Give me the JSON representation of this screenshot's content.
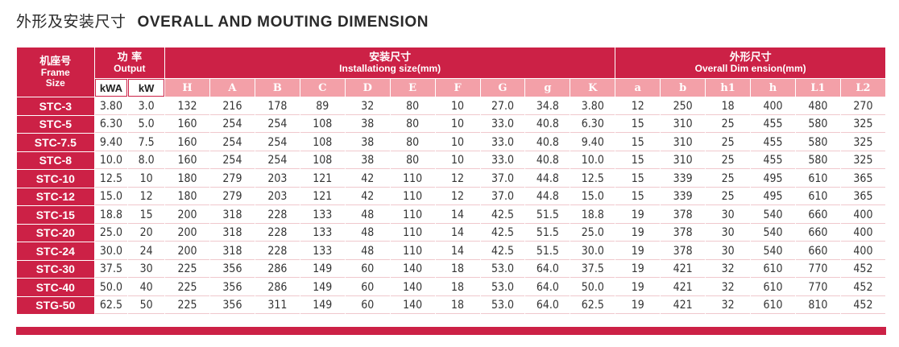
{
  "title": {
    "cn": "外形及安装尺寸",
    "en": "OVERALL AND MOUTING DIMENSION"
  },
  "header": {
    "frame": {
      "cn": "机座号",
      "en1": "Frame",
      "en2": "Size"
    },
    "output": {
      "cn": "功 率",
      "en": "Output",
      "units": [
        "kWA",
        "kW"
      ]
    },
    "install": {
      "cn": "安装尺寸",
      "en": "Installationg size(mm)",
      "letters": [
        "H",
        "A",
        "B",
        "C",
        "D",
        "E",
        "F",
        "G",
        "g",
        "K"
      ]
    },
    "overall": {
      "cn": "外形尺寸",
      "en": "Overall Dim ension(mm)",
      "letters": [
        "a",
        "b",
        "h1",
        "h",
        "L1",
        "L2"
      ]
    }
  },
  "rows": [
    [
      "STC-3",
      "3.80",
      "3.0",
      "132",
      "216",
      "178",
      "89",
      "32",
      "80",
      "10",
      "27.0",
      "34.8",
      "3.80",
      "12",
      "250",
      "18",
      "400",
      "480",
      "270"
    ],
    [
      "STC-5",
      "6.30",
      "5.0",
      "160",
      "254",
      "254",
      "108",
      "38",
      "80",
      "10",
      "33.0",
      "40.8",
      "6.30",
      "15",
      "310",
      "25",
      "455",
      "580",
      "325"
    ],
    [
      "STC-7.5",
      "9.40",
      "7.5",
      "160",
      "254",
      "254",
      "108",
      "38",
      "80",
      "10",
      "33.0",
      "40.8",
      "9.40",
      "15",
      "310",
      "25",
      "455",
      "580",
      "325"
    ],
    [
      "STC-8",
      "10.0",
      "8.0",
      "160",
      "254",
      "254",
      "108",
      "38",
      "80",
      "10",
      "33.0",
      "40.8",
      "10.0",
      "15",
      "310",
      "25",
      "455",
      "580",
      "325"
    ],
    [
      "STC-10",
      "12.5",
      "10",
      "180",
      "279",
      "203",
      "121",
      "42",
      "110",
      "12",
      "37.0",
      "44.8",
      "12.5",
      "15",
      "339",
      "25",
      "495",
      "610",
      "365"
    ],
    [
      "STC-12",
      "15.0",
      "12",
      "180",
      "279",
      "203",
      "121",
      "42",
      "110",
      "12",
      "37.0",
      "44.8",
      "15.0",
      "15",
      "339",
      "25",
      "495",
      "610",
      "365"
    ],
    [
      "STC-15",
      "18.8",
      "15",
      "200",
      "318",
      "228",
      "133",
      "48",
      "110",
      "14",
      "42.5",
      "51.5",
      "18.8",
      "19",
      "378",
      "30",
      "540",
      "660",
      "400"
    ],
    [
      "STC-20",
      "25.0",
      "20",
      "200",
      "318",
      "228",
      "133",
      "48",
      "110",
      "14",
      "42.5",
      "51.5",
      "25.0",
      "19",
      "378",
      "30",
      "540",
      "660",
      "400"
    ],
    [
      "STC-24",
      "30.0",
      "24",
      "200",
      "318",
      "228",
      "133",
      "48",
      "110",
      "14",
      "42.5",
      "51.5",
      "30.0",
      "19",
      "378",
      "30",
      "540",
      "660",
      "400"
    ],
    [
      "STC-30",
      "37.5",
      "30",
      "225",
      "356",
      "286",
      "149",
      "60",
      "140",
      "18",
      "53.0",
      "64.0",
      "37.5",
      "19",
      "421",
      "32",
      "610",
      "770",
      "452"
    ],
    [
      "STC-40",
      "50.0",
      "40",
      "225",
      "356",
      "286",
      "149",
      "60",
      "140",
      "18",
      "53.0",
      "64.0",
      "50.0",
      "19",
      "421",
      "32",
      "610",
      "770",
      "452"
    ],
    [
      "STG-50",
      "62.5",
      "50",
      "225",
      "356",
      "311",
      "149",
      "60",
      "140",
      "18",
      "53.0",
      "64.0",
      "62.5",
      "19",
      "421",
      "32",
      "610",
      "810",
      "452"
    ]
  ],
  "colors": {
    "accent": "#cc2146",
    "letter_row": "#f3a0a8"
  }
}
